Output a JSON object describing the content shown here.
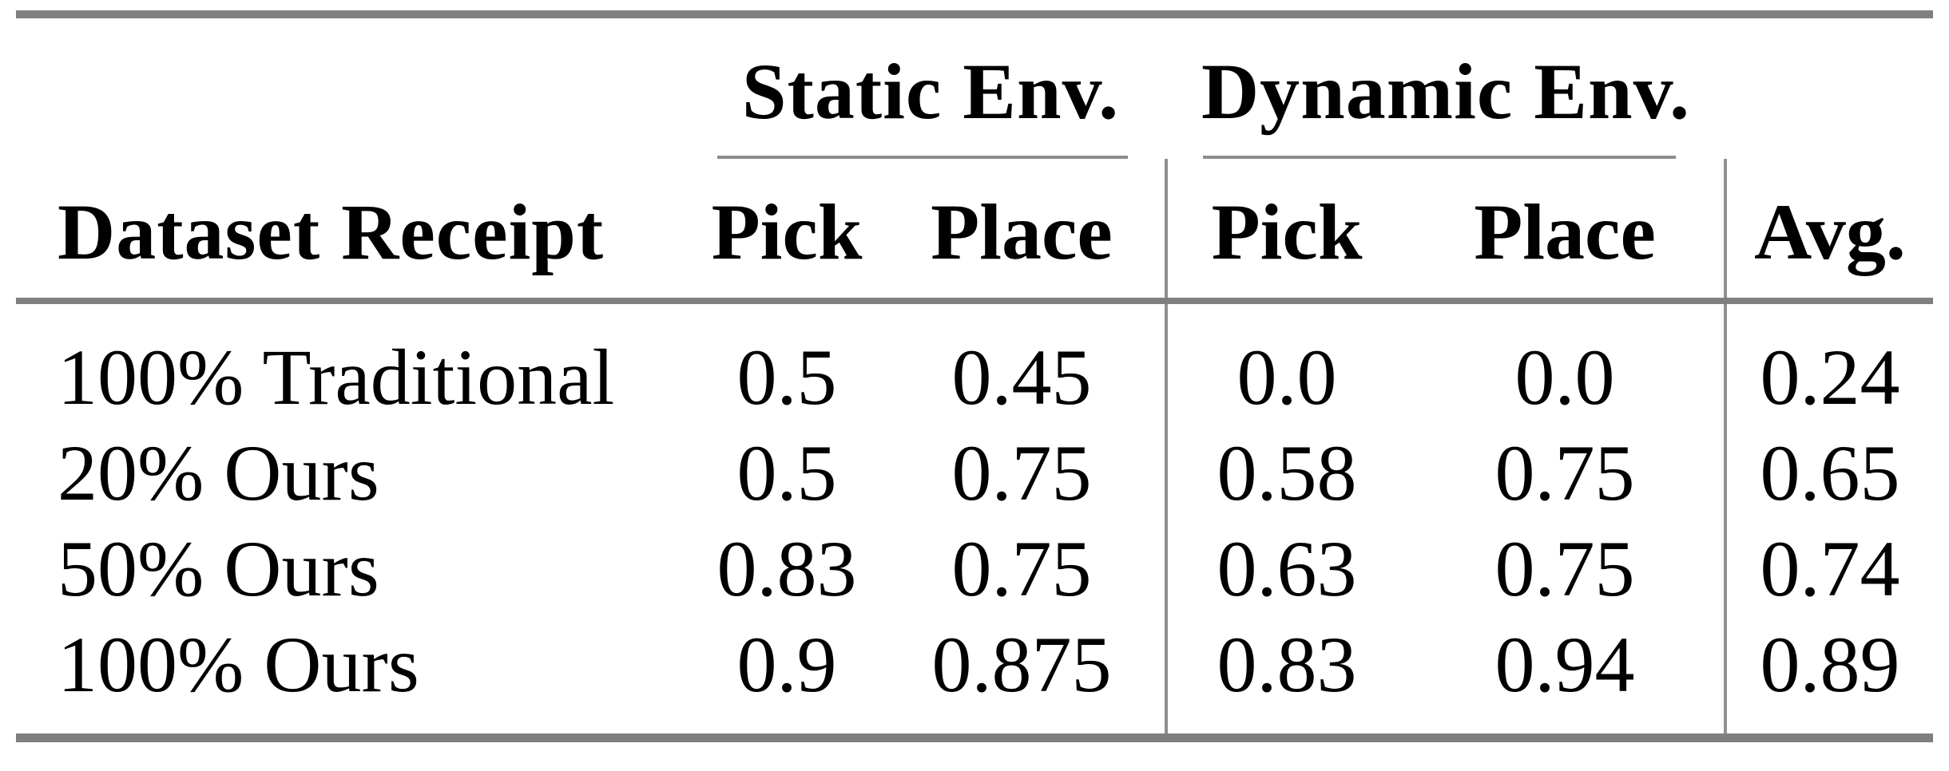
{
  "table": {
    "group_headers": [
      {
        "label": "Static Env."
      },
      {
        "label": "Dynamic Env."
      }
    ],
    "columns": [
      "Dataset Receipt",
      "Pick",
      "Place",
      "Pick",
      "Place",
      "Avg."
    ],
    "rows": [
      {
        "label": "100% Traditional",
        "values": [
          "0.5",
          "0.45",
          "0.0",
          "0.0",
          "0.24"
        ]
      },
      {
        "label": "20% Ours",
        "values": [
          "0.5",
          "0.75",
          "0.58",
          "0.75",
          "0.65"
        ]
      },
      {
        "label": "50% Ours",
        "values": [
          "0.83",
          "0.75",
          "0.63",
          "0.75",
          "0.74"
        ]
      },
      {
        "label": "100% Ours",
        "values": [
          "0.9",
          "0.875",
          "0.83",
          "0.94",
          "0.89"
        ]
      }
    ],
    "colors": {
      "rule_heavy": "#7f7f7f",
      "rule_thin": "#8c8c8c",
      "text": "#000000",
      "background": "#ffffff"
    }
  },
  "chart_data": {
    "type": "table",
    "title": "",
    "column_groups": [
      {
        "label": "",
        "cols": [
          "Dataset Receipt"
        ]
      },
      {
        "label": "Static Env.",
        "cols": [
          "Pick",
          "Place"
        ]
      },
      {
        "label": "Dynamic Env.",
        "cols": [
          "Pick",
          "Place"
        ]
      },
      {
        "label": "",
        "cols": [
          "Avg."
        ]
      }
    ],
    "categories": [
      "100% Traditional",
      "20% Ours",
      "50% Ours",
      "100% Ours"
    ],
    "series": [
      {
        "name": "Static Env. Pick",
        "values": [
          0.5,
          0.5,
          0.83,
          0.9
        ]
      },
      {
        "name": "Static Env. Place",
        "values": [
          0.45,
          0.75,
          0.75,
          0.875
        ]
      },
      {
        "name": "Dynamic Env. Pick",
        "values": [
          0.0,
          0.58,
          0.63,
          0.83
        ]
      },
      {
        "name": "Dynamic Env. Place",
        "values": [
          0.0,
          0.75,
          0.75,
          0.94
        ]
      },
      {
        "name": "Avg.",
        "values": [
          0.24,
          0.65,
          0.74,
          0.89
        ]
      }
    ]
  }
}
